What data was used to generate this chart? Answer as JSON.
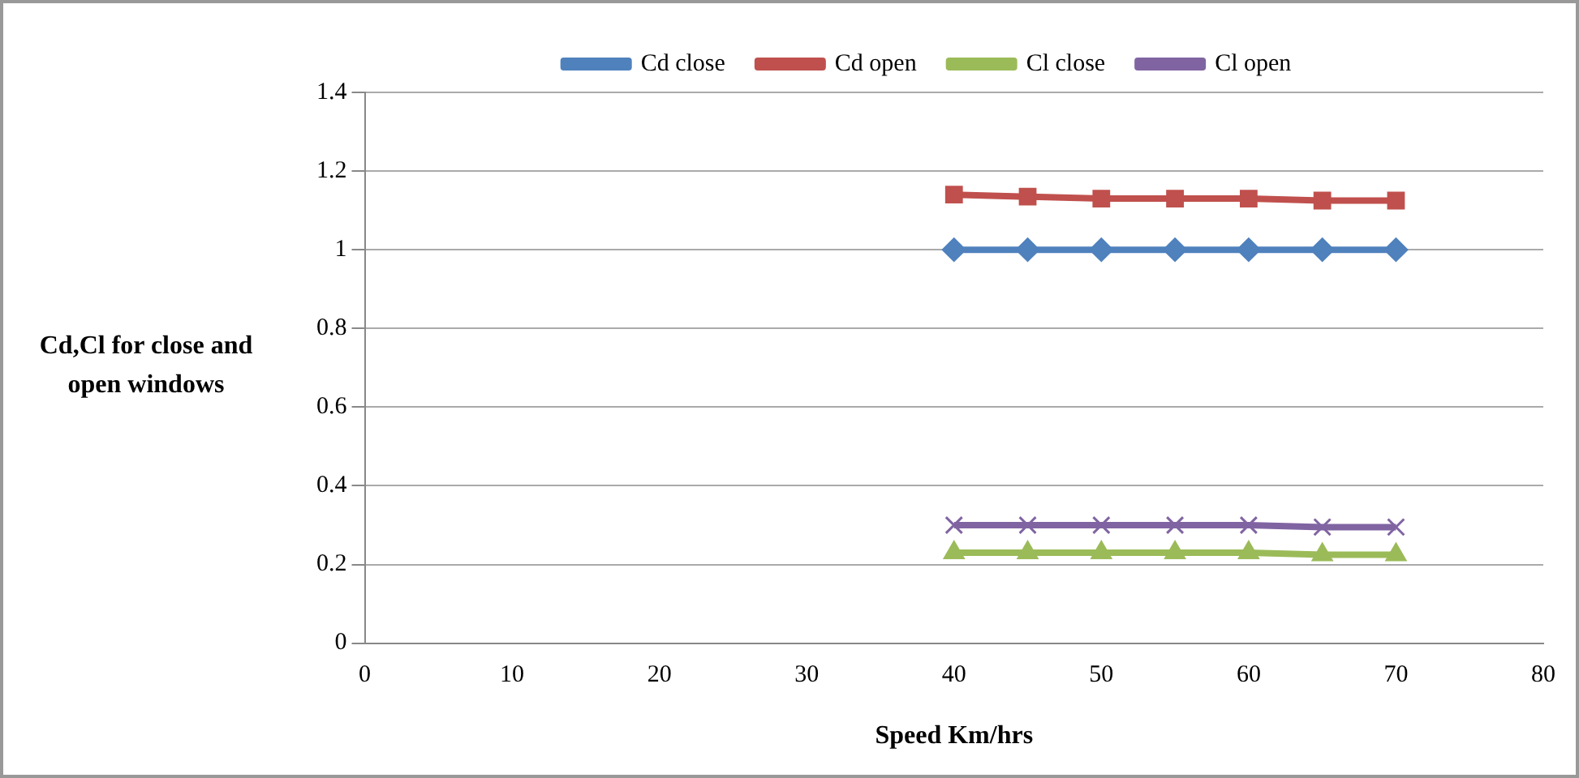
{
  "chart_data": {
    "type": "line",
    "xlabel": "Speed Km/hrs",
    "ylabel": "Cd,Cl for close and open windows",
    "x": [
      40,
      45,
      50,
      55,
      60,
      65,
      70
    ],
    "series": [
      {
        "name": "Cd close",
        "color": "#4f81bd",
        "marker": "diamond",
        "values": [
          1,
          1,
          1,
          1,
          1,
          1,
          1
        ]
      },
      {
        "name": "Cd open",
        "color": "#c0504d",
        "marker": "square",
        "values": [
          1.14,
          1.135,
          1.13,
          1.13,
          1.13,
          1.125,
          1.125
        ]
      },
      {
        "name": "Cl close",
        "color": "#9bbb59",
        "marker": "triangle",
        "values": [
          0.23,
          0.23,
          0.23,
          0.23,
          0.23,
          0.225,
          0.225
        ]
      },
      {
        "name": "Cl open",
        "color": "#8064a2",
        "marker": "cross",
        "values": [
          0.3,
          0.3,
          0.3,
          0.3,
          0.3,
          0.295,
          0.295
        ]
      }
    ],
    "xlim": [
      0,
      80
    ],
    "xticks": [
      0,
      10,
      20,
      30,
      40,
      50,
      60,
      70,
      80
    ],
    "ylim": [
      0,
      1.4
    ],
    "yticks": [
      0,
      0.2,
      0.4,
      0.6,
      0.8,
      1,
      1.2,
      1.4
    ],
    "grid": "y",
    "legend": "top"
  }
}
